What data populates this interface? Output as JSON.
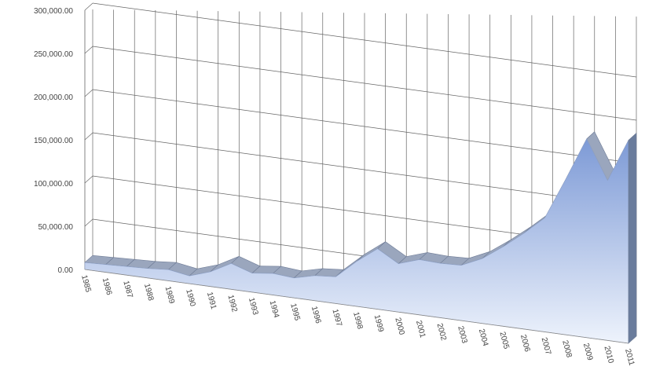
{
  "chart_data": {
    "type": "area",
    "title": "",
    "xlabel": "",
    "ylabel": "",
    "ylim": [
      0,
      300000
    ],
    "yticks": [
      "0.00",
      "50,000.00",
      "100,000.00",
      "150,000.00",
      "200,000.00",
      "250,000.00",
      "300,000.00"
    ],
    "categories": [
      "1985",
      "1986",
      "1987",
      "1988",
      "1989",
      "1990",
      "1991",
      "1992",
      "1993",
      "1994",
      "1995",
      "1996",
      "1997",
      "1998",
      "1999",
      "2000",
      "2001",
      "2002",
      "2003",
      "2004",
      "2005",
      "2006",
      "2007",
      "2008",
      "2009",
      "2010",
      "2011"
    ],
    "series": [
      {
        "values": [
          8000,
          9000,
          10000,
          11000,
          13000,
          9000,
          17000,
          30000,
          22000,
          25000,
          23000,
          29000,
          31000,
          52000,
          70000,
          56000,
          64000,
          63000,
          64000,
          75000,
          92000,
          111000,
          132000,
          180000,
          230000,
          185000,
          235000
        ]
      }
    ],
    "grid": true,
    "legend": "none",
    "colors": {
      "area_top": "#7d9ad6",
      "area_bottom": "#eef3fc",
      "ridge": "#9aa6bd",
      "ridge_edge": "#6f7c96",
      "side": "#6a7c9c",
      "grid": "#666666"
    }
  }
}
